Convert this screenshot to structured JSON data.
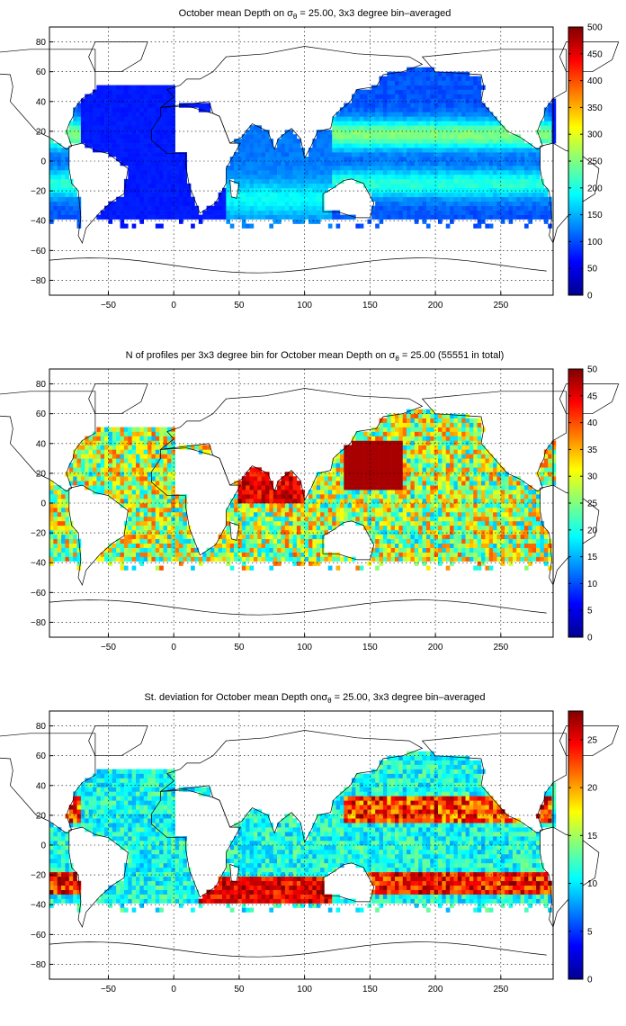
{
  "chart_data": [
    {
      "type": "heatmap",
      "title_parts": [
        "October mean Depth on ",
        "σ",
        "θ",
        " = 25.00, 3x3 degree bin–averaged"
      ],
      "xlim": [
        -95,
        290
      ],
      "ylim": [
        -90,
        90
      ],
      "x_ticks": [
        -50,
        0,
        50,
        100,
        150,
        200,
        250
      ],
      "y_ticks": [
        -80,
        -60,
        -40,
        -20,
        0,
        20,
        40,
        60,
        80
      ],
      "colorbar": {
        "min": 0,
        "max": 500,
        "ticks": [
          0,
          50,
          100,
          150,
          200,
          250,
          300,
          350,
          400,
          450,
          500
        ]
      },
      "grid": true,
      "colormap": "jet"
    },
    {
      "type": "heatmap",
      "title_parts": [
        "N of profiles per 3x3 degree bin for October mean Depth on ",
        "σ",
        "θ",
        " = 25.00 (55551 in total)"
      ],
      "xlim": [
        -95,
        290
      ],
      "ylim": [
        -90,
        90
      ],
      "x_ticks": [
        -50,
        0,
        50,
        100,
        150,
        200,
        250
      ],
      "y_ticks": [
        -80,
        -60,
        -40,
        -20,
        0,
        20,
        40,
        60,
        80
      ],
      "colorbar": {
        "min": 0,
        "max": 50,
        "ticks": [
          0,
          5,
          10,
          15,
          20,
          25,
          30,
          35,
          40,
          45,
          50
        ]
      },
      "grid": true,
      "colormap": "jet"
    },
    {
      "type": "heatmap",
      "title_parts": [
        "St. deviation for October mean Depth on",
        "σ",
        "θ",
        " = 25.00, 3x3 degree bin–averaged"
      ],
      "xlim": [
        -95,
        290
      ],
      "ylim": [
        -90,
        90
      ],
      "x_ticks": [
        -50,
        0,
        50,
        100,
        150,
        200,
        250
      ],
      "y_ticks": [
        -80,
        -60,
        -40,
        -20,
        0,
        20,
        40,
        60,
        80
      ],
      "colorbar": {
        "min": 0,
        "max": 28,
        "ticks": [
          0,
          5,
          10,
          15,
          20,
          25
        ]
      },
      "grid": true,
      "colormap": "jet"
    }
  ],
  "colors": {
    "axis": "#000000",
    "background": "#ffffff",
    "coast": "#000000"
  }
}
